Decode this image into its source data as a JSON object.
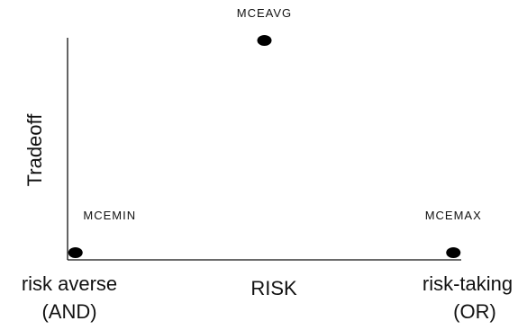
{
  "chart_data": {
    "type": "scatter",
    "xlabel": "RISK",
    "ylabel": "Tradeoff",
    "x_tick_labels": {
      "left": [
        "risk averse",
        "(AND)"
      ],
      "right": [
        "risk-taking",
        "(OR)"
      ]
    },
    "xlim": [
      0,
      1
    ],
    "ylim": [
      0,
      1
    ],
    "points": [
      {
        "label": "MCEMIN",
        "x": 0.02,
        "y": 0.0
      },
      {
        "label": "MCEAVG",
        "x": 0.5,
        "y": 1.0
      },
      {
        "label": "MCEMAX",
        "x": 0.98,
        "y": 0.0
      }
    ],
    "grid": false
  }
}
